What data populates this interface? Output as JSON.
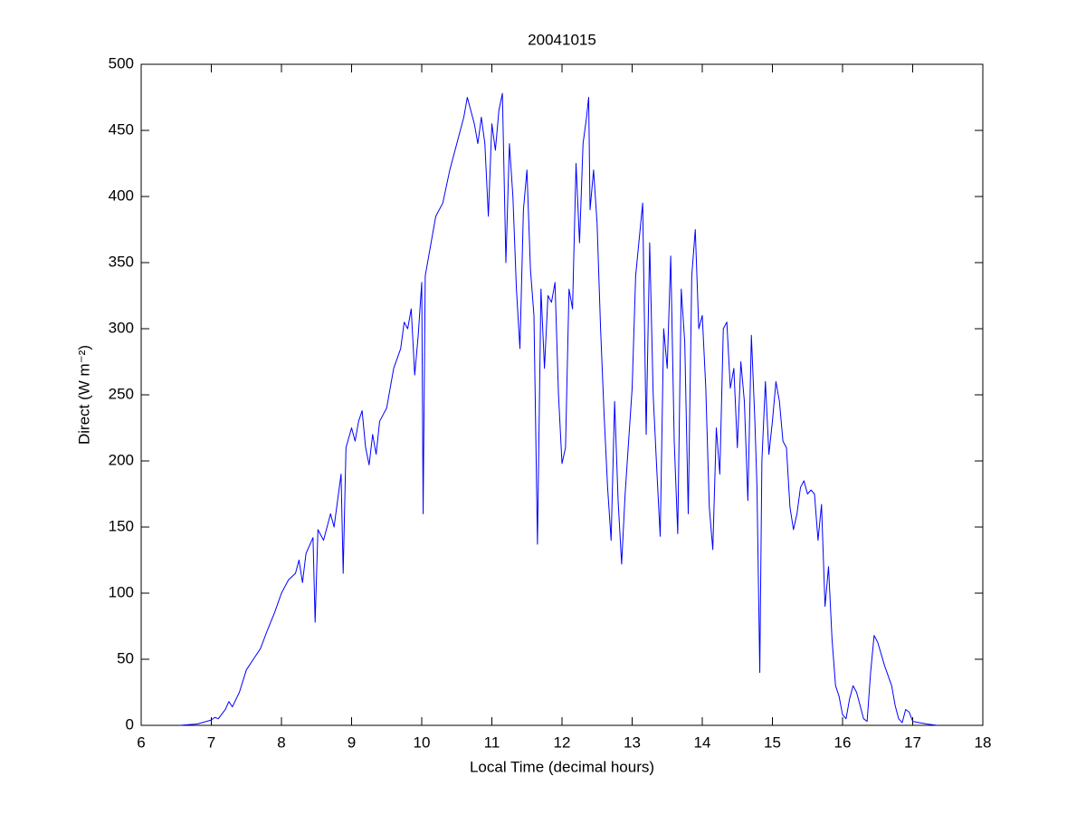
{
  "chart_data": {
    "type": "line",
    "title": "20041015",
    "xlabel": "Local Time (decimal hours)",
    "ylabel": "Direct (W m⁻²)",
    "xlim": [
      6,
      18
    ],
    "xticks": [
      6,
      7,
      8,
      9,
      10,
      11,
      12,
      13,
      14,
      15,
      16,
      17,
      18
    ],
    "ylim": [
      0,
      500
    ],
    "yticks": [
      0,
      50,
      100,
      150,
      200,
      250,
      300,
      350,
      400,
      450,
      500
    ],
    "grid": false,
    "x": [
      6.55,
      6.8,
      7.0,
      7.05,
      7.1,
      7.2,
      7.25,
      7.3,
      7.4,
      7.5,
      7.6,
      7.7,
      7.8,
      7.9,
      8.0,
      8.1,
      8.2,
      8.25,
      8.3,
      8.35,
      8.45,
      8.48,
      8.52,
      8.6,
      8.7,
      8.75,
      8.8,
      8.85,
      8.88,
      8.92,
      9.0,
      9.05,
      9.1,
      9.15,
      9.2,
      9.25,
      9.3,
      9.35,
      9.4,
      9.5,
      9.6,
      9.7,
      9.75,
      9.8,
      9.85,
      9.9,
      9.95,
      10.0,
      10.02,
      10.05,
      10.1,
      10.2,
      10.3,
      10.4,
      10.5,
      10.6,
      10.65,
      10.7,
      10.75,
      10.8,
      10.85,
      10.9,
      10.95,
      11.0,
      11.05,
      11.1,
      11.15,
      11.2,
      11.25,
      11.3,
      11.35,
      11.4,
      11.45,
      11.5,
      11.55,
      11.6,
      11.65,
      11.7,
      11.75,
      11.8,
      11.85,
      11.9,
      11.95,
      12.0,
      12.05,
      12.1,
      12.15,
      12.2,
      12.25,
      12.3,
      12.35,
      12.38,
      12.4,
      12.45,
      12.5,
      12.55,
      12.6,
      12.65,
      12.7,
      12.75,
      12.8,
      12.85,
      12.9,
      13.0,
      13.05,
      13.15,
      13.2,
      13.25,
      13.3,
      13.35,
      13.4,
      13.45,
      13.5,
      13.55,
      13.6,
      13.65,
      13.7,
      13.75,
      13.8,
      13.85,
      13.9,
      13.95,
      14.0,
      14.05,
      14.1,
      14.15,
      14.2,
      14.25,
      14.3,
      14.35,
      14.4,
      14.45,
      14.5,
      14.55,
      14.6,
      14.65,
      14.7,
      14.75,
      14.78,
      14.82,
      14.85,
      14.9,
      14.95,
      15.0,
      15.05,
      15.1,
      15.15,
      15.2,
      15.25,
      15.3,
      15.35,
      15.4,
      15.45,
      15.5,
      15.55,
      15.6,
      15.65,
      15.7,
      15.75,
      15.8,
      15.85,
      15.9,
      15.95,
      16.0,
      16.05,
      16.1,
      16.15,
      16.2,
      16.25,
      16.3,
      16.35,
      16.4,
      16.45,
      16.5,
      16.6,
      16.7,
      16.75,
      16.8,
      16.85,
      16.9,
      16.95,
      17.0,
      17.1,
      17.2,
      17.35
    ],
    "series": [
      {
        "name": "Direct",
        "color": "#0000ff",
        "values": [
          0,
          1,
          4,
          6,
          5,
          12,
          18,
          14,
          25,
          42,
          50,
          58,
          72,
          85,
          100,
          110,
          115,
          125,
          108,
          130,
          142,
          78,
          148,
          140,
          160,
          150,
          170,
          190,
          115,
          210,
          225,
          215,
          230,
          238,
          210,
          197,
          220,
          205,
          230,
          240,
          270,
          285,
          305,
          300,
          315,
          265,
          295,
          335,
          160,
          340,
          355,
          385,
          395,
          420,
          440,
          460,
          475,
          465,
          455,
          440,
          460,
          440,
          385,
          455,
          435,
          465,
          478,
          350,
          440,
          400,
          330,
          285,
          390,
          420,
          345,
          310,
          137,
          330,
          270,
          325,
          320,
          335,
          250,
          198,
          210,
          330,
          315,
          425,
          365,
          440,
          460,
          475,
          390,
          420,
          380,
          300,
          235,
          180,
          140,
          245,
          170,
          122,
          175,
          255,
          340,
          395,
          220,
          365,
          250,
          195,
          143,
          300,
          270,
          355,
          215,
          145,
          330,
          290,
          160,
          340,
          375,
          300,
          310,
          255,
          165,
          133,
          225,
          190,
          300,
          305,
          255,
          270,
          210,
          275,
          245,
          170,
          295,
          230,
          180,
          40,
          200,
          260,
          205,
          230,
          260,
          245,
          215,
          210,
          165,
          148,
          160,
          180,
          185,
          175,
          178,
          175,
          140,
          167,
          90,
          120,
          65,
          30,
          22,
          8,
          5,
          20,
          30,
          25,
          15,
          5,
          3,
          40,
          68,
          63,
          45,
          30,
          15,
          5,
          2,
          12,
          10,
          3,
          2,
          1,
          0
        ]
      }
    ]
  }
}
